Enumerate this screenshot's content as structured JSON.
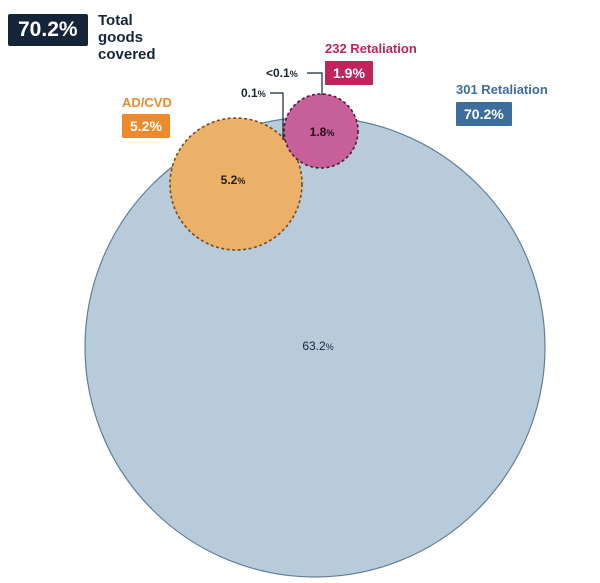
{
  "total": {
    "value": "70.2%",
    "caption": "Total goods covered"
  },
  "sets": {
    "retaliation_301": {
      "title": "301 Retaliation",
      "value": "70.2%",
      "color": "#3e6e9e",
      "fill": "#b7cad9"
    },
    "retaliation_232": {
      "title": "232 Retaliation",
      "value": "1.9%",
      "color": "#c0245c",
      "fill": "#c8609b"
    },
    "ad_cvd": {
      "title": "AD/CVD",
      "value": "5.2%",
      "color": "#ee8a2b",
      "fill": "#ecb268"
    }
  },
  "regions": {
    "only_301": "63.2%",
    "ad_cvd": "5.2%",
    "r232": "1.8%",
    "overlap_301_adcvd_232": "0.1%",
    "overlap_301_232": "<0.1%"
  }
}
